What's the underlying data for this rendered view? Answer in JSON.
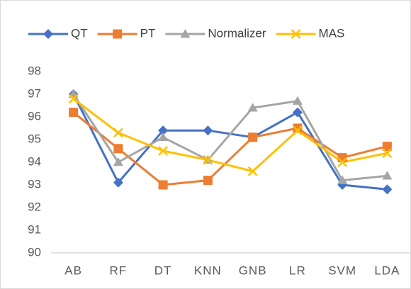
{
  "chart_data": {
    "type": "line",
    "categories": [
      "AB",
      "RF",
      "DT",
      "KNN",
      "GNB",
      "LR",
      "SVM",
      "LDA"
    ],
    "series": [
      {
        "name": "QT",
        "color": "#4472c4",
        "marker": "diamond",
        "values": [
          97.0,
          93.1,
          95.4,
          95.4,
          95.1,
          96.2,
          93.0,
          92.8
        ]
      },
      {
        "name": "PT",
        "color": "#ed7d31",
        "marker": "square",
        "values": [
          96.2,
          94.6,
          93.0,
          93.2,
          95.1,
          95.5,
          94.2,
          94.7
        ]
      },
      {
        "name": "Normalizer",
        "color": "#a5a5a5",
        "marker": "triangle",
        "values": [
          97.0,
          94.0,
          95.1,
          94.1,
          96.4,
          96.7,
          93.2,
          93.4
        ]
      },
      {
        "name": "MAS",
        "color": "#ffc000",
        "marker": "x",
        "values": [
          96.8,
          95.3,
          94.5,
          94.1,
          93.6,
          95.4,
          94.0,
          94.4
        ]
      }
    ],
    "ylim": [
      90,
      98
    ],
    "yticks": [
      90,
      91,
      92,
      93,
      94,
      95,
      96,
      97,
      98
    ],
    "legend": "top",
    "grid": false
  }
}
